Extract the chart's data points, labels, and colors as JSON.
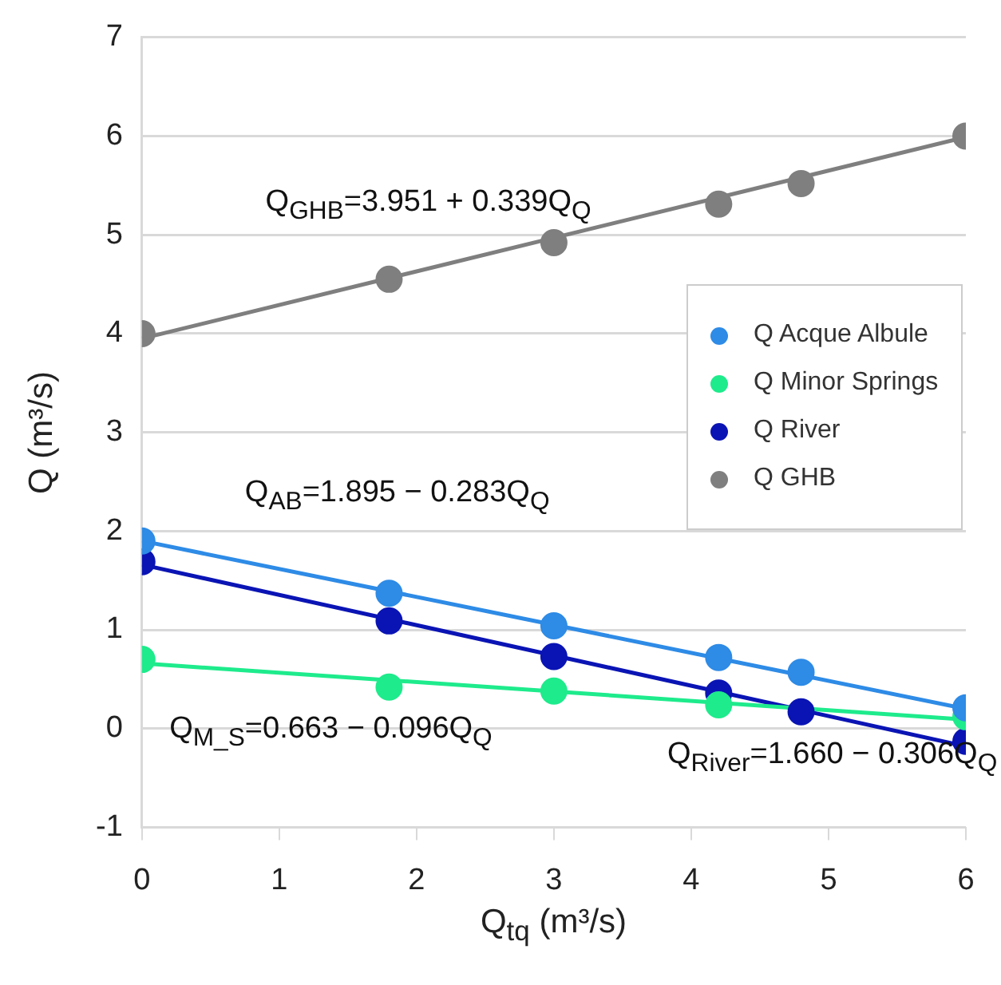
{
  "chart_data": {
    "type": "scatter",
    "xlabel": "Q$_{tq}$ (m³/s)",
    "ylabel": "Q (m³/s)",
    "xlim": [
      0,
      6
    ],
    "xticks": [
      0,
      1,
      2,
      3,
      4,
      5,
      6
    ],
    "ylim": [
      -1,
      7
    ],
    "yticks": [
      -1,
      0,
      1,
      2,
      3,
      4,
      5,
      6,
      7
    ],
    "grid": "y",
    "legend": "right",
    "marker": "circle",
    "series": [
      {
        "name": "Q Acque Albule",
        "color": "#2e8be6",
        "x": [
          0,
          1.8,
          3,
          4.2,
          4.8,
          6
        ],
        "values": [
          1.9,
          1.37,
          1.04,
          0.72,
          0.57,
          0.21
        ]
      },
      {
        "name": "Q Minor Springs",
        "color": "#1eeb8c",
        "x": [
          0,
          1.8,
          3,
          4.2,
          4.8,
          6
        ],
        "values": [
          0.7,
          0.42,
          0.38,
          0.24,
          null,
          0.12
        ]
      },
      {
        "name": "Q River",
        "color": "#0a14b4",
        "x": [
          0,
          1.8,
          3,
          4.2,
          4.8,
          6
        ],
        "values": [
          1.69,
          1.09,
          0.73,
          0.36,
          0.17,
          -0.13
        ]
      },
      {
        "name": "Q GHB",
        "color": "#7f7f7f",
        "x": [
          0,
          1.8,
          3,
          4.2,
          4.8,
          6
        ],
        "values": [
          4.0,
          4.55,
          4.92,
          5.31,
          5.52,
          6.0
        ]
      },
      {
        "type": "line",
        "marker": "none",
        "color": "#2e8be6",
        "x": [
          0,
          6
        ],
        "values": [
          1.9,
          0.2
        ]
      },
      {
        "type": "line",
        "marker": "none",
        "color": "#1eeb8c",
        "x": [
          0,
          6
        ],
        "values": [
          0.66,
          0.09
        ]
      },
      {
        "type": "line",
        "marker": "none",
        "color": "#0a14b4",
        "x": [
          0,
          6
        ],
        "values": [
          1.66,
          -0.18
        ]
      },
      {
        "type": "line",
        "marker": "none",
        "color": "#7f7f7f",
        "x": [
          0,
          6
        ],
        "values": [
          3.95,
          5.99
        ]
      }
    ],
    "annotations": [
      "Q$_{GHB}$=3.951 + 0.339Q$_{Q}$",
      "Q$_{AB}$=1.895 − 0.283Q$_{Q}$",
      "Q$_{M_S}$=0.663 − 0.096Q$_{Q}$",
      "Q$_{River}$=1.660 − 0.306Q$_{Q}$"
    ]
  }
}
